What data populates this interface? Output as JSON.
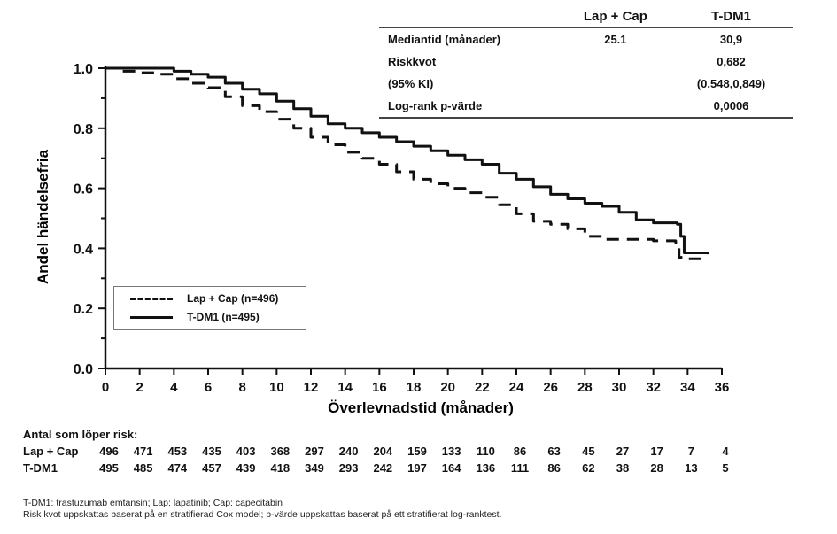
{
  "stats_table": {
    "columns": [
      "",
      "Lap + Cap",
      "T-DM1"
    ],
    "rows": [
      {
        "label": "Mediantid (månader)",
        "lapcap": "25.1",
        "tdm1": "30,9"
      },
      {
        "label": "Riskkvot",
        "lapcap": "",
        "tdm1": "0,682"
      },
      {
        "label": "(95% KI)",
        "lapcap": "",
        "tdm1": "(0,548,0,849)"
      },
      {
        "label": "Log-rank p-värde",
        "lapcap": "",
        "tdm1": "0,0006"
      }
    ]
  },
  "legend": {
    "items": [
      {
        "label": "Lap + Cap (n=496)",
        "style": "dashed"
      },
      {
        "label": "T-DM1 (n=495)",
        "style": "solid"
      }
    ]
  },
  "risk_table": {
    "title": "Antal som löper risk:",
    "rows": [
      {
        "label": "Lap + Cap",
        "values": [
          496,
          471,
          453,
          435,
          403,
          368,
          297,
          240,
          204,
          159,
          133,
          110,
          86,
          63,
          45,
          27,
          17,
          7,
          4
        ]
      },
      {
        "label": "T-DM1",
        "values": [
          495,
          485,
          474,
          457,
          439,
          418,
          349,
          293,
          242,
          197,
          164,
          136,
          111,
          86,
          62,
          38,
          28,
          13,
          5
        ]
      }
    ]
  },
  "footnotes": [
    "T-DM1: trastuzumab emtansin; Lap: lapatinib; Cap: capecitabin",
    "Risk kvot uppskattas baserat på en stratifierad Cox model; p-värde  uppskattas baserat på ett stratifierat log-ranktest."
  ],
  "chart_data": {
    "type": "line",
    "subtype": "kaplan-meier step",
    "title": "",
    "xlabel": "Överlevnadstid (månader)",
    "ylabel": "Andel händelsefria",
    "xlim": [
      0,
      36
    ],
    "ylim": [
      0,
      1.0
    ],
    "xticks": [
      0,
      2,
      4,
      6,
      8,
      10,
      12,
      14,
      16,
      18,
      20,
      22,
      24,
      26,
      28,
      30,
      32,
      34,
      36
    ],
    "yticks": [
      "0.0",
      "0.2",
      "0.4",
      "0.6",
      "0.8",
      "1.0"
    ],
    "yticks_values": [
      0,
      0.2,
      0.4,
      0.6,
      0.8,
      1.0
    ],
    "grid": false,
    "legend_position": "bottom-left",
    "series": [
      {
        "name": "Lap + Cap (n=496)",
        "style": "dashed",
        "x": [
          0,
          1,
          2,
          3,
          4,
          5,
          6,
          7,
          8,
          9,
          10,
          11,
          12,
          13,
          14,
          15,
          16,
          17,
          18,
          19,
          20,
          21,
          22,
          23,
          24,
          25,
          26,
          27,
          28,
          29,
          30,
          31,
          32,
          33.3,
          33.5,
          34,
          35
        ],
        "y": [
          1.0,
          0.99,
          0.985,
          0.98,
          0.965,
          0.95,
          0.935,
          0.905,
          0.875,
          0.855,
          0.83,
          0.8,
          0.77,
          0.745,
          0.72,
          0.7,
          0.68,
          0.655,
          0.63,
          0.615,
          0.6,
          0.585,
          0.57,
          0.545,
          0.515,
          0.49,
          0.48,
          0.465,
          0.44,
          0.43,
          0.43,
          0.43,
          0.425,
          0.42,
          0.37,
          0.365,
          0.36
        ]
      },
      {
        "name": "T-DM1 (n=495)",
        "style": "solid",
        "x": [
          0,
          1,
          2,
          3,
          4,
          5,
          6,
          7,
          8,
          9,
          10,
          11,
          12,
          13,
          14,
          15,
          16,
          17,
          18,
          19,
          20,
          21,
          22,
          23,
          24,
          25,
          26,
          27,
          28,
          29,
          30,
          31,
          32,
          33.4,
          33.6,
          33.8,
          35.2
        ],
        "y": [
          1.0,
          1.0,
          1.0,
          1.0,
          0.99,
          0.98,
          0.97,
          0.95,
          0.93,
          0.915,
          0.89,
          0.865,
          0.84,
          0.815,
          0.8,
          0.785,
          0.77,
          0.755,
          0.74,
          0.725,
          0.71,
          0.695,
          0.68,
          0.65,
          0.63,
          0.605,
          0.58,
          0.565,
          0.55,
          0.54,
          0.52,
          0.495,
          0.485,
          0.48,
          0.44,
          0.385,
          0.38
        ]
      }
    ]
  }
}
